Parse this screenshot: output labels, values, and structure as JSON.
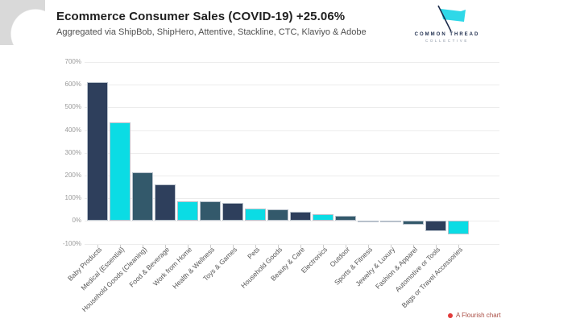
{
  "header": {
    "title": "Ecommerce Consumer Sales (COVID-19) +25.06%",
    "subtitle": "Aggregated via ShipBob, ShipHero, Attentive, Stackline, CTC, Klaviyo & Adobe"
  },
  "logo": {
    "line1": "COMMON THREAD",
    "line2": "COLLECTIVE",
    "flag_color": "#2fd8e8",
    "pole_color": "#1e2d4d"
  },
  "footer": {
    "credit": "A Flourish chart",
    "dot_color": "#e23b3b"
  },
  "chart_data": {
    "type": "bar",
    "title": "Ecommerce Consumer Sales (COVID-19) +25.06%",
    "xlabel": "",
    "ylabel": "",
    "categories": [
      "Baby Products",
      "Medical (Essential)",
      "Household Goods (Cleaning)",
      "Food & Beverage",
      "Work from Home",
      "Health & Wellness",
      "Toys & Games",
      "Pets",
      "Household Goods",
      "Beauty & Care",
      "Electronics",
      "Outdoor",
      "Sports & Fitness",
      "Jewelry & Luxury",
      "Fashion & Apparel",
      "Automotive or Tools",
      "Bags or Travel Accessories"
    ],
    "values": [
      610,
      435,
      215,
      160,
      85,
      85,
      80,
      55,
      50,
      40,
      30,
      22,
      2,
      -5,
      -15,
      -45,
      -60
    ],
    "unit": "%",
    "bar_color_cycle": [
      "#2e3f5c",
      "#0bdce4",
      "#33596b"
    ],
    "y_tick_labels": [
      "700%",
      "600%",
      "500%",
      "400%",
      "300%",
      "200%",
      "100%",
      "0%",
      "-100%"
    ],
    "y_tick_values": [
      700,
      600,
      500,
      400,
      300,
      200,
      100,
      0,
      -100
    ],
    "ylim": [
      -100,
      700
    ],
    "grid": true,
    "legend": false
  }
}
